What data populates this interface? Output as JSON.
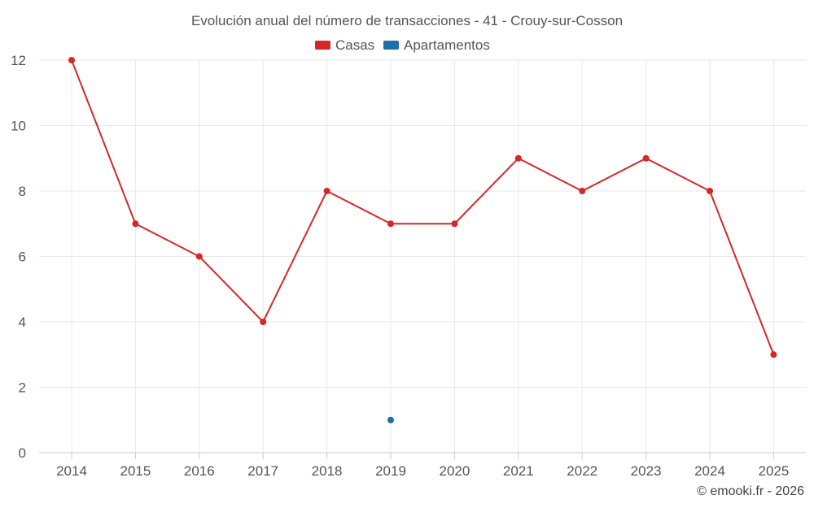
{
  "chart_data": {
    "type": "line",
    "title": "Evolución anual del número de transacciones - 41 - Crouy-sur-Cosson",
    "categories": [
      "2014",
      "2015",
      "2016",
      "2017",
      "2018",
      "2019",
      "2020",
      "2021",
      "2022",
      "2023",
      "2024",
      "2025"
    ],
    "ylim": [
      0,
      12
    ],
    "yticks": [
      0,
      2,
      4,
      6,
      8,
      10,
      12
    ],
    "grid": true,
    "legend_position": "top-center",
    "series": [
      {
        "name": "Casas",
        "color": "#d62728",
        "values": [
          12,
          7,
          6,
          4,
          8,
          7,
          7,
          9,
          8,
          9,
          8,
          3
        ]
      },
      {
        "name": "Apartamentos",
        "color": "#1f6fa8",
        "values": [
          null,
          null,
          null,
          null,
          null,
          1,
          null,
          null,
          null,
          null,
          null,
          null
        ]
      }
    ]
  },
  "credit": "© emooki.fr - 2026"
}
